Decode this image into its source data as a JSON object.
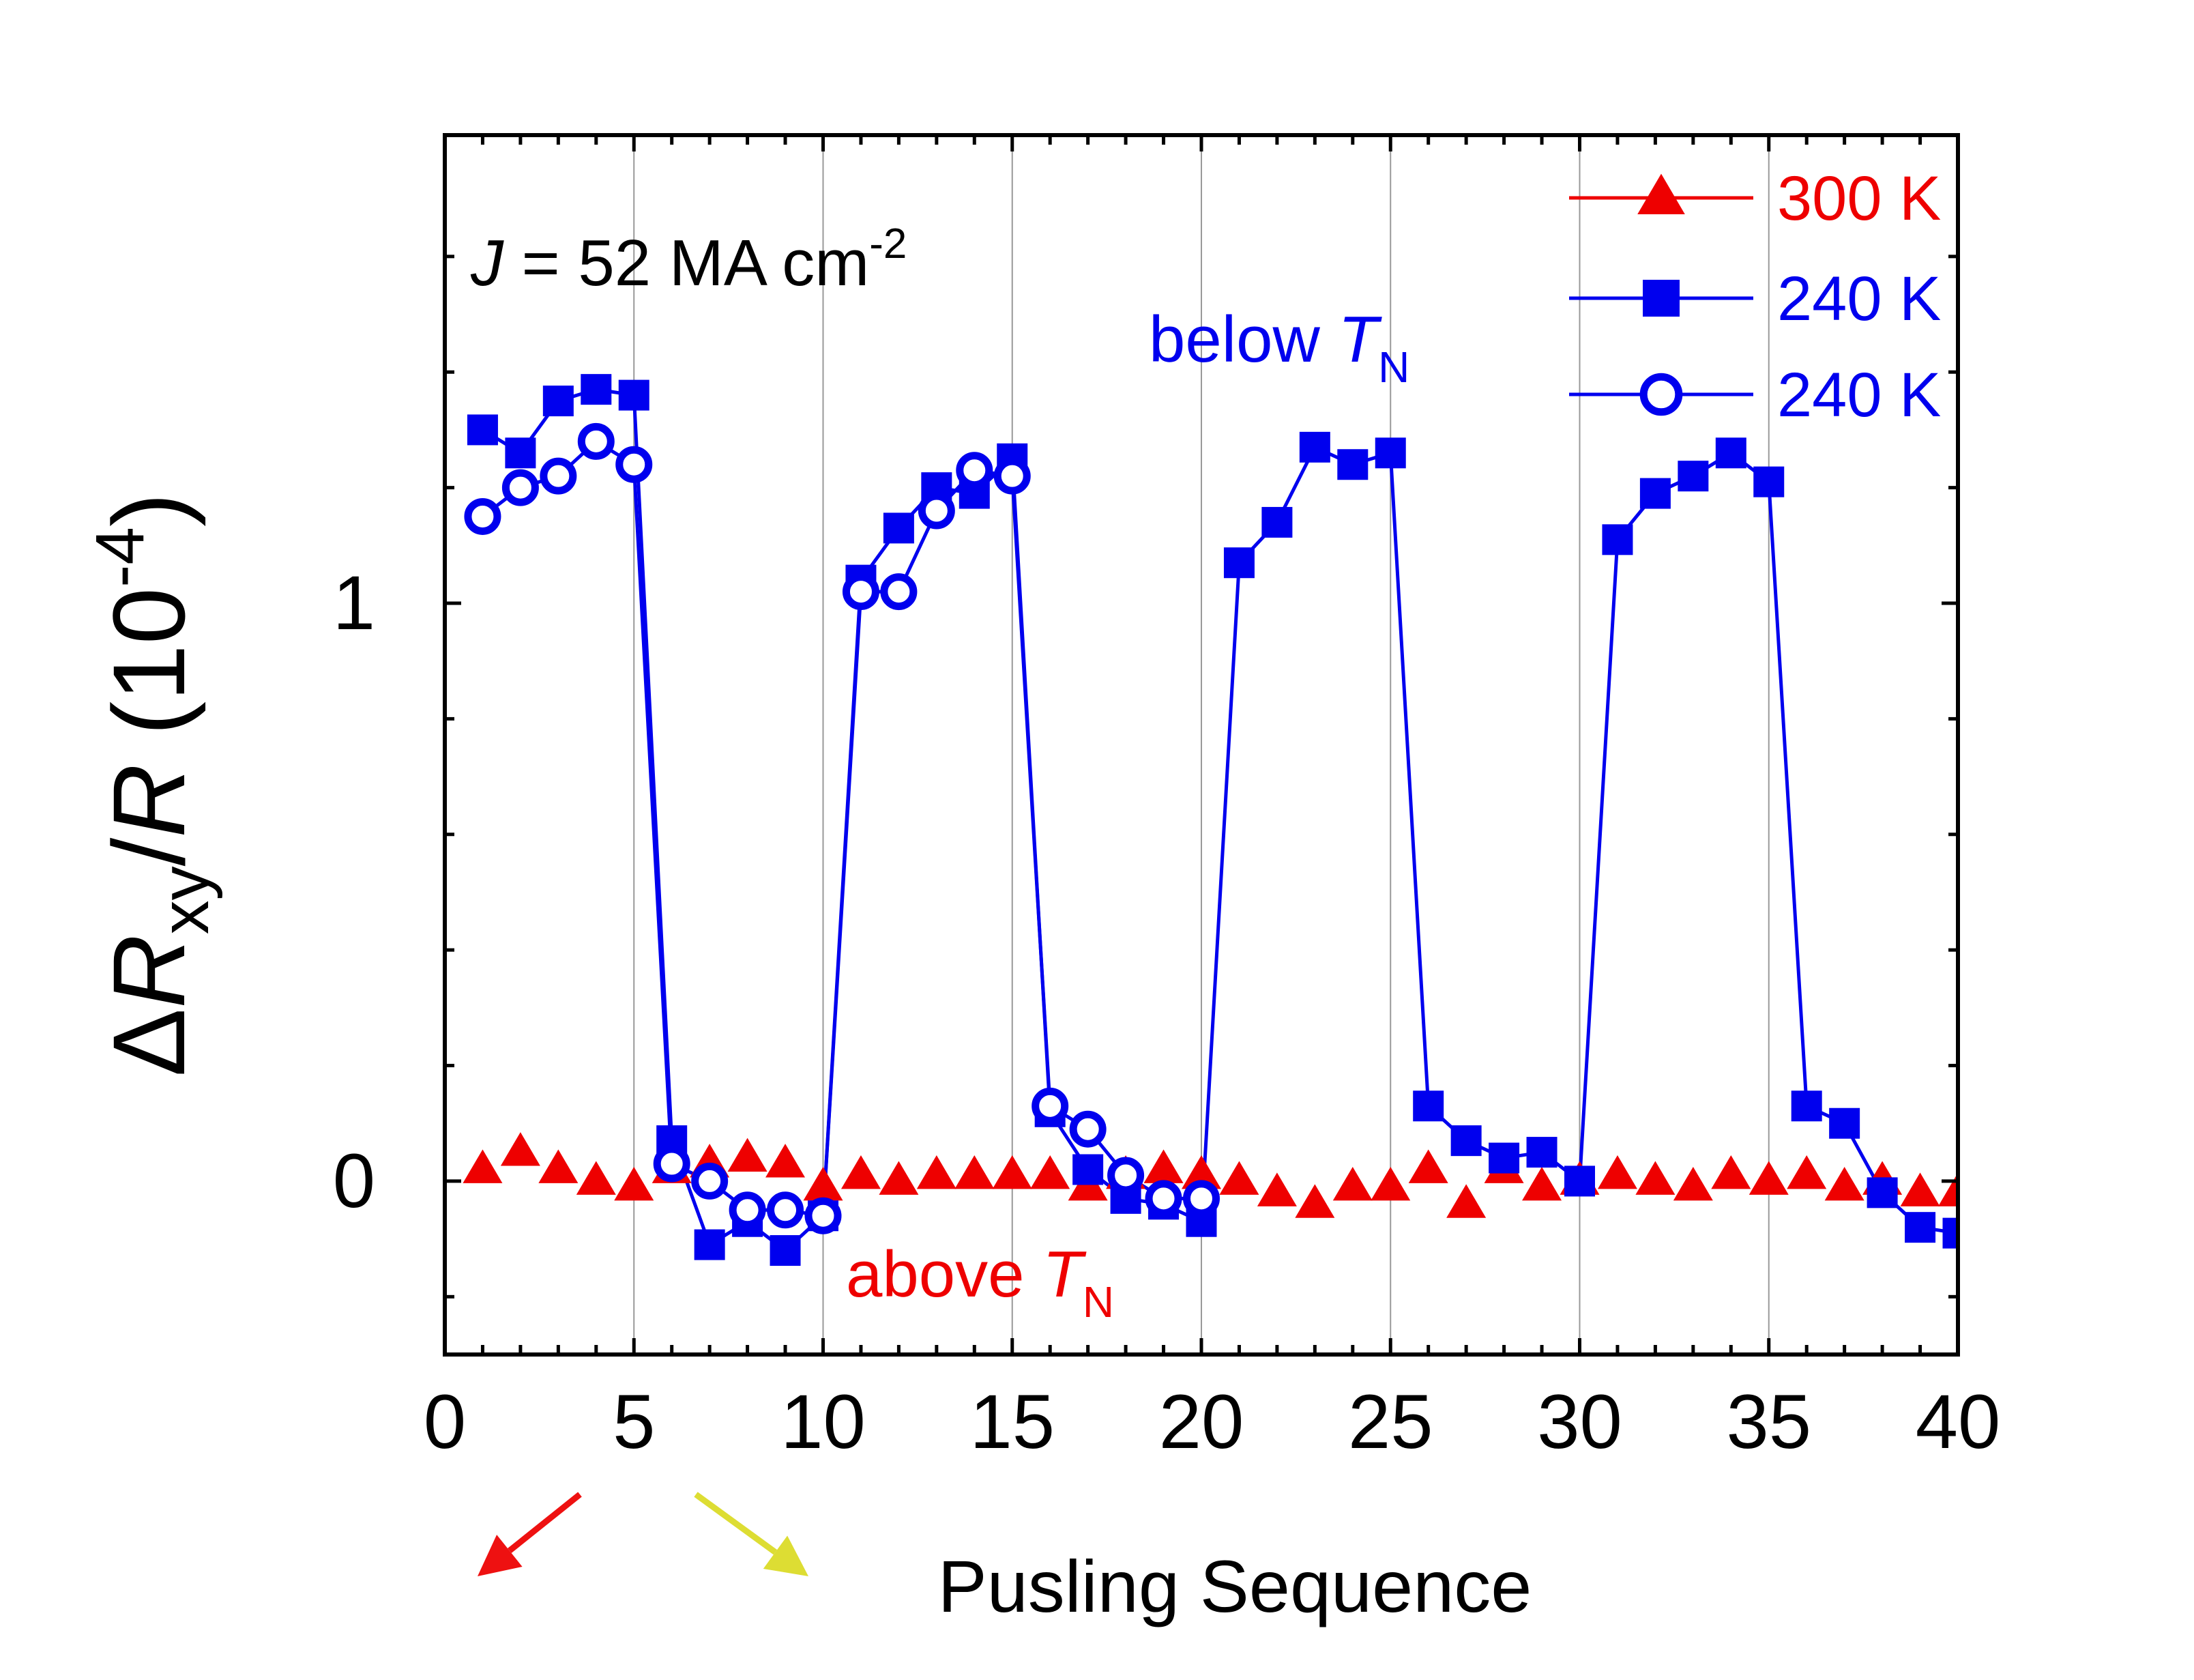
{
  "chart_data": {
    "type": "line",
    "title": "",
    "annotation": {
      "current_symbol": "J",
      "current_value": "= 52 MA cm",
      "current_exp": "-2"
    },
    "region_labels": {
      "below": {
        "text": "below ",
        "symbol": "T",
        "subscript": "N",
        "color": "#0000ee"
      },
      "above": {
        "text": "above ",
        "symbol": "T",
        "subscript": "N",
        "color": "#ee0000"
      }
    },
    "xlabel": "Pusling Sequence",
    "ylabel": {
      "delta": "Δ",
      "R": "R",
      "sub": "xy",
      "slash": "/",
      "R2": "R",
      "unit_open": " (10",
      "exp": "-4",
      "unit_close": ")"
    },
    "xlim": [
      0,
      40
    ],
    "ylim": [
      -0.3,
      1.81
    ],
    "x_ticks": [
      0,
      5,
      10,
      15,
      20,
      25,
      30,
      35,
      40
    ],
    "x_tick_labels": [
      "0",
      "5",
      "10",
      "15",
      "20",
      "25",
      "30",
      "35",
      "40"
    ],
    "y_ticks": [
      0,
      1
    ],
    "y_tick_labels": [
      "0",
      "1"
    ],
    "vertical_gridlines": [
      5,
      10,
      15,
      20,
      25,
      30,
      35
    ],
    "series": [
      {
        "name": "300 K",
        "marker": "triangle",
        "color": "#ee0000",
        "line": false,
        "x": [
          1,
          2,
          3,
          4,
          5,
          6,
          7,
          8,
          9,
          10,
          11,
          12,
          13,
          14,
          15,
          16,
          17,
          18,
          19,
          20,
          21,
          22,
          23,
          24,
          25,
          26,
          27,
          28,
          29,
          30,
          31,
          32,
          33,
          34,
          35,
          36,
          37,
          38,
          39,
          40
        ],
        "y": [
          0.02,
          0.05,
          0.02,
          0.0,
          -0.01,
          0.02,
          0.03,
          0.04,
          0.03,
          -0.01,
          0.01,
          0.0,
          0.01,
          0.01,
          0.01,
          0.01,
          -0.01,
          0.01,
          0.02,
          0.01,
          0.0,
          -0.02,
          -0.04,
          -0.01,
          -0.01,
          0.02,
          -0.04,
          0.02,
          -0.01,
          0.0,
          0.01,
          0.0,
          -0.01,
          0.01,
          0.0,
          0.01,
          -0.01,
          0.0,
          -0.02,
          -0.02
        ]
      },
      {
        "name": "240 K",
        "marker": "square",
        "color": "#0000ee",
        "line": true,
        "x": [
          1,
          2,
          3,
          4,
          5,
          6,
          7,
          8,
          9,
          10,
          11,
          12,
          13,
          14,
          15,
          16,
          17,
          18,
          19,
          20,
          21,
          22,
          23,
          24,
          25,
          26,
          27,
          28,
          29,
          30,
          31,
          32,
          33,
          34,
          35,
          36,
          37,
          38,
          39,
          40
        ],
        "y": [
          1.3,
          1.26,
          1.35,
          1.37,
          1.36,
          0.07,
          -0.11,
          -0.07,
          -0.12,
          -0.06,
          1.04,
          1.13,
          1.2,
          1.19,
          1.25,
          0.12,
          0.02,
          -0.03,
          -0.04,
          -0.07,
          1.07,
          1.14,
          1.27,
          1.24,
          1.26,
          0.13,
          0.07,
          0.04,
          0.05,
          0.0,
          1.11,
          1.19,
          1.22,
          1.26,
          1.21,
          0.13,
          0.1,
          -0.02,
          -0.08,
          -0.09
        ]
      },
      {
        "name": "240 K",
        "marker": "open-circle",
        "color": "#0000ee",
        "line": true,
        "x": [
          1,
          2,
          3,
          4,
          5,
          6,
          7,
          8,
          9,
          10,
          11,
          12,
          13,
          14,
          15,
          16,
          17,
          18,
          19,
          20
        ],
        "y": [
          1.15,
          1.2,
          1.22,
          1.28,
          1.24,
          0.03,
          0.0,
          -0.05,
          -0.05,
          -0.06,
          1.02,
          1.02,
          1.16,
          1.23,
          1.22,
          0.13,
          0.09,
          0.01,
          -0.03,
          -0.03
        ]
      }
    ],
    "legend": {
      "position": "top-right",
      "entries": [
        {
          "label": "300 K",
          "marker": "triangle",
          "color": "#ee0000"
        },
        {
          "label": "240 K",
          "marker": "square",
          "color": "#0000ee"
        },
        {
          "label": "240 K",
          "marker": "open-circle",
          "color": "#0000ee"
        }
      ]
    },
    "arrows": [
      {
        "direction": "down-left",
        "color": "#ee1111"
      },
      {
        "direction": "down-right",
        "color": "#dddd33"
      }
    ]
  }
}
